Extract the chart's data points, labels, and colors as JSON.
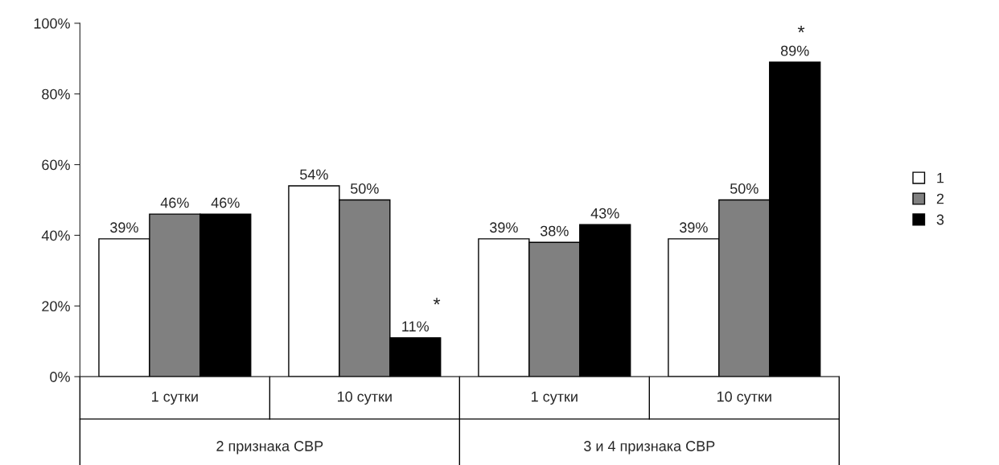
{
  "chart_data": {
    "type": "bar",
    "categories": [
      "1 сутки",
      "10 сутки",
      "1 сутки",
      "10 сутки"
    ],
    "series": [
      {
        "name": "1",
        "color": "#ffffff",
        "values": [
          39,
          54,
          39,
          39
        ],
        "value_labels": [
          "39%",
          "54%",
          "39%",
          "39%"
        ]
      },
      {
        "name": "2",
        "color": "#808080",
        "values": [
          46,
          50,
          38,
          50
        ],
        "value_labels": [
          "46%",
          "50%",
          "38%",
          "50%"
        ]
      },
      {
        "name": "3",
        "color": "#000000",
        "values": [
          46,
          11,
          43,
          89
        ],
        "value_labels": [
          "46%",
          "11%",
          "43%",
          "89%"
        ]
      }
    ],
    "ylim": [
      0,
      100
    ],
    "yticks": [
      {
        "value": 0,
        "label": "0%"
      },
      {
        "value": 20,
        "label": "20%"
      },
      {
        "value": 40,
        "label": "40%"
      },
      {
        "value": 60,
        "label": "60%"
      },
      {
        "value": 80,
        "label": "80%"
      },
      {
        "value": 100,
        "label": "100%"
      }
    ],
    "legend": "right",
    "grid": false,
    "annotations": [
      "2 признака СВР",
      "3 и 4 признака СВР",
      "*",
      "*"
    ]
  }
}
